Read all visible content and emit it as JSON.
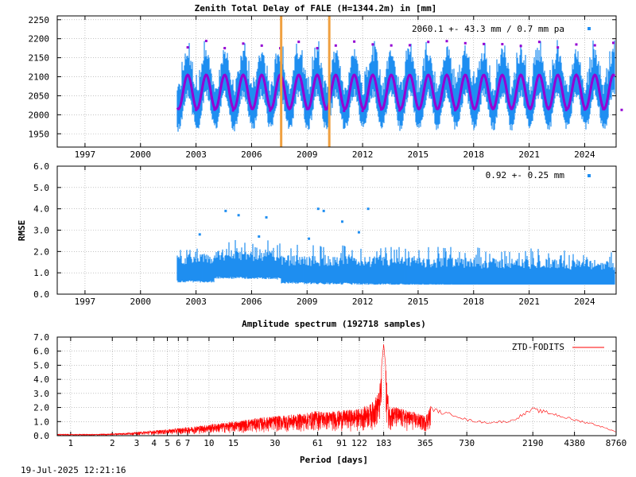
{
  "timestamp": "19-Jul-2025 12:21:16",
  "chart_data": [
    {
      "type": "scatter",
      "title": "Zenith Total Delay of FALE (H=1344.2m) in [mm]",
      "ylabel": "",
      "xlim": [
        1995.5,
        2025.7
      ],
      "ylim": [
        1915,
        2260
      ],
      "x_ticks": [
        1997,
        2000,
        2003,
        2006,
        2009,
        2012,
        2015,
        2018,
        2021,
        2024
      ],
      "x_tick_labels": [
        "1997",
        "2000",
        "2003",
        "2006",
        "2009",
        "2012",
        "2015",
        "2018",
        "2021",
        "2024"
      ],
      "y_ticks": [
        1950,
        2000,
        2050,
        2100,
        2150,
        2200,
        2250
      ],
      "y_tick_labels": [
        "1950",
        "2000",
        "2050",
        "2100",
        "2150",
        "2200",
        "2250"
      ],
      "grid": true,
      "legend": "2060.1 +-  43.3 mm /  0.7 mm pa",
      "legend_position": "top-right",
      "data_start": 2002.0,
      "data_end": 2025.6,
      "series_stats": {
        "mean": 2060.1,
        "std": 43.3,
        "trend_mm_pa": 0.7
      },
      "seasonal_model": {
        "mean": 2060,
        "amplitude": 45
      },
      "equipment_changes": [
        2007.6,
        2010.2
      ],
      "colors": {
        "data": "#1f8ef1",
        "model": "#9400d3",
        "outlier": "#9400d3",
        "change": "#f0a040"
      }
    },
    {
      "type": "scatter",
      "ylabel": "RMSE",
      "xlim": [
        1995.5,
        2025.7
      ],
      "ylim": [
        0.0,
        6.0
      ],
      "x_ticks": [
        1997,
        2000,
        2003,
        2006,
        2009,
        2012,
        2015,
        2018,
        2021,
        2024
      ],
      "x_tick_labels": [
        "1997",
        "2000",
        "2003",
        "2006",
        "2009",
        "2012",
        "2015",
        "2018",
        "2021",
        "2024"
      ],
      "y_ticks": [
        0,
        1,
        2,
        3,
        4,
        5,
        6
      ],
      "y_tick_labels": [
        "0.0",
        "1.0",
        "2.0",
        "3.0",
        "4.0",
        "5.0",
        "6.0"
      ],
      "grid": true,
      "legend": "0.92 +-  0.25 mm",
      "legend_position": "top-right",
      "series_stats": {
        "mean": 0.92,
        "std": 0.25
      },
      "outliers": [
        [
          2004.6,
          3.9
        ],
        [
          2005.3,
          3.7
        ],
        [
          2006.8,
          3.6
        ],
        [
          2009.6,
          4.0
        ],
        [
          2009.9,
          3.9
        ],
        [
          2010.9,
          3.4
        ],
        [
          2012.3,
          4.0
        ],
        [
          2003.2,
          2.8
        ],
        [
          2009.1,
          2.6
        ],
        [
          2011.8,
          2.9
        ],
        [
          2006.4,
          2.7
        ]
      ],
      "colors": {
        "data": "#1f8ef1"
      }
    },
    {
      "type": "line",
      "title": "Amplitude spectrum (192718 samples)",
      "xlabel": "Period [days]",
      "xscale": "log",
      "xlim": [
        0.8,
        8760
      ],
      "ylim": [
        0.0,
        7.0
      ],
      "x_ticks": [
        1,
        2,
        3,
        4,
        5,
        6,
        7,
        10,
        15,
        30,
        61,
        91,
        122,
        183,
        365,
        730,
        2190,
        4380,
        8760
      ],
      "x_tick_labels": [
        "1",
        "2",
        "3",
        "4",
        "5",
        "6",
        "7",
        "10",
        "15",
        "30",
        "61",
        "91",
        "122",
        "183",
        "365",
        "730",
        "2190",
        "4380",
        "8760"
      ],
      "y_ticks": [
        0,
        1,
        2,
        3,
        4,
        5,
        6,
        7
      ],
      "y_tick_labels": [
        "0.0",
        "1.0",
        "2.0",
        "3.0",
        "4.0",
        "5.0",
        "6.0",
        "7.0"
      ],
      "grid": true,
      "series": [
        {
          "name": "ZTD-FODITS",
          "x": [
            1,
            1.5,
            2,
            3,
            5,
            7,
            10,
            15,
            20,
            30,
            40,
            50,
            61,
            70,
            91,
            122,
            150,
            170,
            183,
            200,
            250,
            300,
            365,
            400,
            500,
            600,
            730,
            1000,
            1500,
            2190,
            3000,
            4380,
            6000,
            8760
          ],
          "y": [
            0.1,
            0.1,
            0.15,
            0.25,
            0.45,
            0.6,
            0.8,
            1.0,
            1.2,
            1.4,
            1.5,
            1.6,
            1.8,
            1.7,
            1.8,
            1.9,
            2.3,
            3.2,
            6.5,
            2.2,
            1.9,
            1.7,
            1.4,
            2.1,
            1.7,
            1.6,
            1.2,
            1.0,
            1.1,
            2.0,
            1.7,
            1.2,
            0.9,
            0.3
          ]
        }
      ],
      "legend_position": "top-right",
      "colors": {
        "line": "#ff0000"
      }
    }
  ]
}
